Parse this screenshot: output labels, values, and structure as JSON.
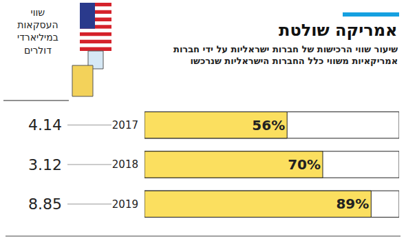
{
  "chart_data": {
    "type": "bar",
    "orientation": "horizontal",
    "title": "אמריקה שולטת",
    "subtitle": "שיעור שווי הרכישות של חברות ישראליות על ידי חברות\nאמריקאיות משווי כלל החברות הישראליות שנרכשו",
    "categories": [
      "2017",
      "2018",
      "2019"
    ],
    "values": [
      56,
      70,
      89
    ],
    "value_labels": [
      "56%",
      "70%",
      "89%"
    ],
    "data_labels": true,
    "color": "#fbdf5f",
    "xlim": [
      0,
      100
    ],
    "tick_labels": "y",
    "grid": false,
    "deal_values_label": "שווי\nהעסקאות\nבמיליארדי\nדולרים",
    "deal_values": [
      4.14,
      3.12,
      8.85
    ]
  }
}
